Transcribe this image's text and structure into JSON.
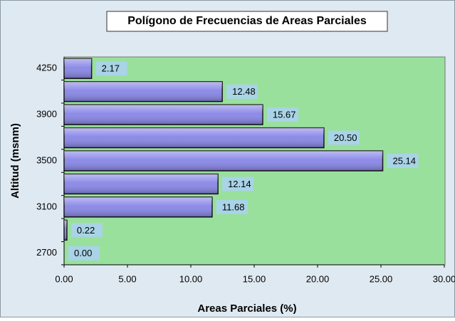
{
  "chart_data": {
    "type": "barh",
    "title": "Polígono de Frecuencias de Areas Parciales",
    "xlabel": "Areas Parciales (%)",
    "ylabel": "Altitud (msnm)",
    "categories": [
      "2700",
      null,
      "3100",
      null,
      "3500",
      null,
      "3900",
      null,
      "4250"
    ],
    "values": [
      0,
      0.22,
      11.68,
      12.14,
      25.14,
      20.5,
      15.67,
      12.48,
      2.17
    ],
    "value_labels": [
      "0.00",
      "0.22",
      "11.68",
      "12.14",
      "25.14",
      "20.50",
      "15.67",
      "12.48",
      "2.17"
    ],
    "color": "#8886e6",
    "xlim": [
      0,
      30
    ],
    "xticks": [
      {
        "value": 0,
        "label": "0.00"
      },
      {
        "value": 5,
        "label": "5.00"
      },
      {
        "value": 10,
        "label": "10.00"
      },
      {
        "value": 15,
        "label": "15.00"
      },
      {
        "value": 20,
        "label": "20.00"
      },
      {
        "value": 25,
        "label": "25.00"
      },
      {
        "value": 30,
        "label": "30.00"
      }
    ]
  }
}
